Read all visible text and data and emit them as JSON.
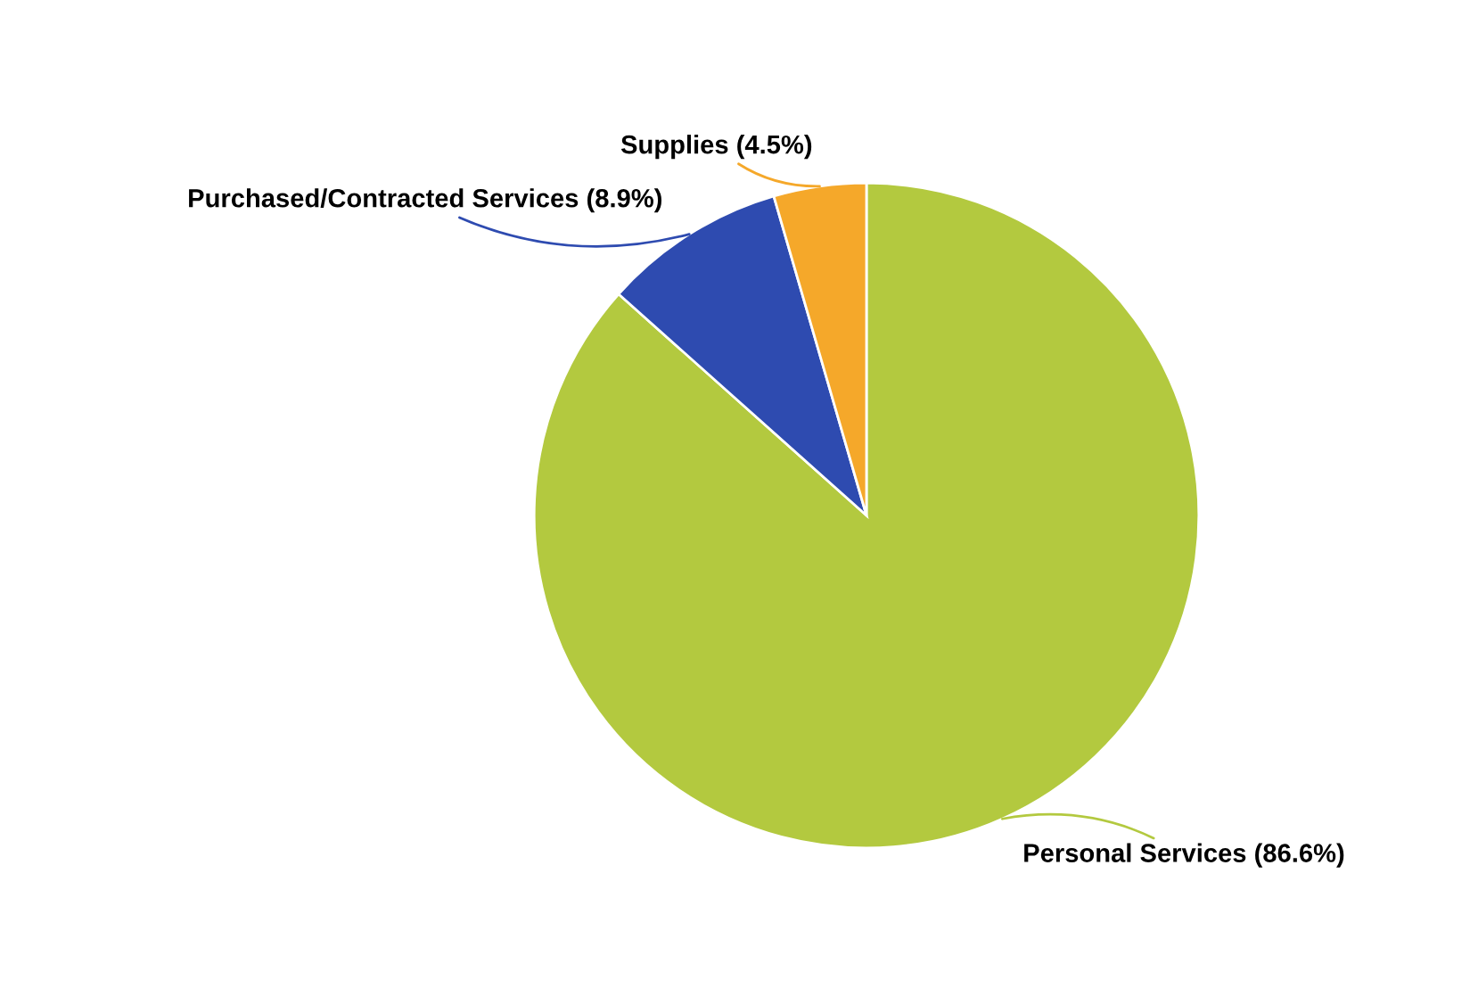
{
  "chart_data": {
    "type": "pie",
    "categories": [
      "Personal Services",
      "Purchased/Contracted Services",
      "Supplies"
    ],
    "values": [
      86.6,
      8.9,
      4.5
    ],
    "value_labels": [
      "(86.6%)",
      "(8.9%)",
      "(4.5%)"
    ],
    "colors": [
      "#b3c93f",
      "#2e4bb0",
      "#f5a82a"
    ],
    "legend": false
  }
}
